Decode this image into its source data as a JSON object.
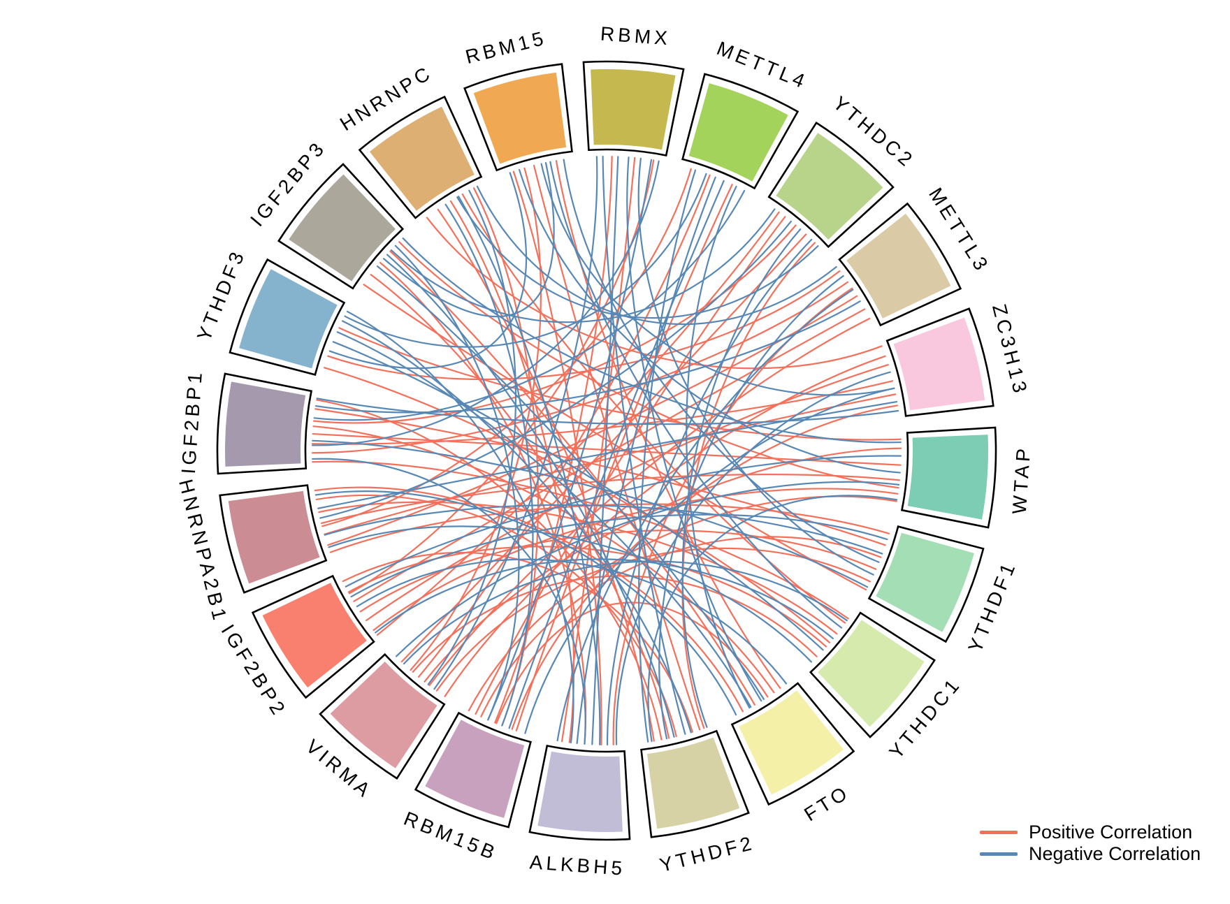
{
  "chart_data": {
    "type": "chord",
    "title": "",
    "description": "Circular chord diagram of pairwise correlations among m6A regulator genes",
    "sectors": [
      {
        "name": "RBM15",
        "color": "#F0A952"
      },
      {
        "name": "RBMX",
        "color": "#C4B84E"
      },
      {
        "name": "METTL4",
        "color": "#A4D35C"
      },
      {
        "name": "YTHDC2",
        "color": "#B8D38A"
      },
      {
        "name": "METTL3",
        "color": "#DACAA6"
      },
      {
        "name": "ZC3H13",
        "color": "#FAC8DE"
      },
      {
        "name": "WTAP",
        "color": "#7CCDB4"
      },
      {
        "name": "YTHDF1",
        "color": "#A4DEB5"
      },
      {
        "name": "YTHDC1",
        "color": "#D7EAAE"
      },
      {
        "name": "FTO",
        "color": "#F4F0A8"
      },
      {
        "name": "YTHDF2",
        "color": "#D6D2A6"
      },
      {
        "name": "ALKBH5",
        "color": "#C2BDD6"
      },
      {
        "name": "RBM15B",
        "color": "#C7A1BD"
      },
      {
        "name": "VIRMA",
        "color": "#DD9CA2"
      },
      {
        "name": "IGF2BP2",
        "color": "#F97F6E"
      },
      {
        "name": "HNRNPA2B1",
        "color": "#CC8C93"
      },
      {
        "name": "IGF2BP1",
        "color": "#A59AAD"
      },
      {
        "name": "YTHDF3",
        "color": "#85B2CC"
      },
      {
        "name": "IGF2BP3",
        "color": "#ABA89B"
      },
      {
        "name": "HNRNPC",
        "color": "#DDAF73"
      }
    ],
    "links_format": [
      "source_sector_index",
      "source_position_0to1",
      "target_sector_index",
      "target_position_0to1",
      "sign: p=positive n=negative"
    ],
    "links": [
      [
        16,
        0.2,
        4,
        0.3,
        "p"
      ],
      [
        16,
        0.32,
        5,
        0.52,
        "p"
      ],
      [
        16,
        0.45,
        6,
        0.42,
        "p"
      ],
      [
        16,
        0.62,
        3,
        0.5,
        "p"
      ],
      [
        16,
        0.78,
        7,
        0.28,
        "p"
      ],
      [
        16,
        0.08,
        8,
        0.15,
        "p"
      ],
      [
        16,
        0.9,
        10,
        0.72,
        "p"
      ],
      [
        15,
        0.18,
        4,
        0.52,
        "p"
      ],
      [
        15,
        0.33,
        5,
        0.7,
        "p"
      ],
      [
        15,
        0.48,
        6,
        0.62,
        "p"
      ],
      [
        15,
        0.63,
        8,
        0.4,
        "p"
      ],
      [
        15,
        0.8,
        10,
        0.52,
        "p"
      ],
      [
        15,
        0.08,
        7,
        0.12,
        "p"
      ],
      [
        15,
        0.92,
        9,
        0.8,
        "p"
      ],
      [
        14,
        0.12,
        6,
        0.8,
        "p"
      ],
      [
        14,
        0.28,
        5,
        0.3,
        "p"
      ],
      [
        14,
        0.42,
        7,
        0.62,
        "p"
      ],
      [
        14,
        0.58,
        4,
        0.72,
        "p"
      ],
      [
        14,
        0.72,
        8,
        0.62,
        "p"
      ],
      [
        14,
        0.88,
        10,
        0.3,
        "p"
      ],
      [
        14,
        0.04,
        3,
        0.22,
        "p"
      ],
      [
        13,
        0.18,
        7,
        0.8,
        "p"
      ],
      [
        13,
        0.38,
        6,
        0.2,
        "p"
      ],
      [
        13,
        0.58,
        8,
        0.8,
        "p"
      ],
      [
        13,
        0.78,
        3,
        0.68,
        "p"
      ],
      [
        13,
        0.05,
        5,
        0.18,
        "p"
      ],
      [
        12,
        0.28,
        5,
        0.85,
        "p"
      ],
      [
        12,
        0.5,
        9,
        0.42,
        "p"
      ],
      [
        12,
        0.72,
        7,
        0.45,
        "p"
      ],
      [
        12,
        0.9,
        6,
        0.9,
        "p"
      ],
      [
        17,
        0.28,
        4,
        0.12,
        "p"
      ],
      [
        17,
        0.68,
        6,
        0.08,
        "p"
      ],
      [
        17,
        0.12,
        8,
        0.55,
        "p"
      ],
      [
        18,
        0.28,
        10,
        0.62,
        "p"
      ],
      [
        18,
        0.48,
        11,
        0.52,
        "p"
      ],
      [
        18,
        0.68,
        9,
        0.62,
        "p"
      ],
      [
        18,
        0.12,
        7,
        0.92,
        "p"
      ],
      [
        18,
        0.85,
        6,
        0.72,
        "p"
      ],
      [
        19,
        0.3,
        10,
        0.82,
        "p"
      ],
      [
        19,
        0.5,
        11,
        0.72,
        "p"
      ],
      [
        19,
        0.68,
        8,
        0.22,
        "p"
      ],
      [
        19,
        0.85,
        12,
        0.42,
        "p"
      ],
      [
        19,
        0.12,
        5,
        0.04,
        "p"
      ],
      [
        0,
        0.2,
        11,
        0.3,
        "p"
      ],
      [
        0,
        0.48,
        10,
        0.2,
        "p"
      ],
      [
        0,
        0.78,
        9,
        0.22,
        "p"
      ],
      [
        0,
        0.35,
        13,
        0.62,
        "p"
      ],
      [
        1,
        0.3,
        12,
        0.52,
        "p"
      ],
      [
        1,
        0.6,
        11,
        0.82,
        "p"
      ],
      [
        1,
        0.85,
        14,
        0.7,
        "p"
      ],
      [
        2,
        0.4,
        13,
        0.48,
        "p"
      ],
      [
        2,
        0.72,
        12,
        0.22,
        "p"
      ],
      [
        2,
        0.14,
        15,
        0.44,
        "p"
      ],
      [
        3,
        0.32,
        12,
        0.8,
        "p"
      ],
      [
        4,
        0.86,
        13,
        0.3,
        "p"
      ],
      [
        11,
        0.14,
        4,
        0.4,
        "p"
      ],
      [
        10,
        0.14,
        3,
        0.84,
        "p"
      ],
      [
        9,
        0.32,
        16,
        0.55,
        "p"
      ],
      [
        1,
        0.18,
        10,
        0.4,
        "n"
      ],
      [
        1,
        0.38,
        11,
        0.42,
        "n"
      ],
      [
        1,
        0.52,
        9,
        0.52,
        "n"
      ],
      [
        1,
        0.68,
        7,
        0.7,
        "n"
      ],
      [
        1,
        0.82,
        12,
        0.62,
        "n"
      ],
      [
        1,
        0.1,
        13,
        0.22,
        "n"
      ],
      [
        1,
        0.92,
        16,
        0.3,
        "n"
      ],
      [
        2,
        0.2,
        10,
        0.9,
        "n"
      ],
      [
        2,
        0.48,
        11,
        0.62,
        "n"
      ],
      [
        2,
        0.78,
        9,
        0.7,
        "n"
      ],
      [
        2,
        0.9,
        16,
        0.66,
        "n"
      ],
      [
        2,
        0.6,
        12,
        0.32,
        "n"
      ],
      [
        2,
        0.35,
        17,
        0.85,
        "n"
      ],
      [
        0,
        0.28,
        6,
        0.52,
        "n"
      ],
      [
        0,
        0.58,
        5,
        0.62,
        "n"
      ],
      [
        0,
        0.7,
        8,
        0.3,
        "n"
      ],
      [
        0,
        0.88,
        7,
        0.52,
        "n"
      ],
      [
        0,
        0.15,
        17,
        0.35,
        "n"
      ],
      [
        0,
        0.64,
        18,
        0.55,
        "n"
      ],
      [
        3,
        0.58,
        10,
        0.1,
        "n"
      ],
      [
        3,
        0.78,
        11,
        0.22,
        "n"
      ],
      [
        3,
        0.42,
        15,
        0.55,
        "n"
      ],
      [
        3,
        0.15,
        18,
        0.7,
        "n"
      ],
      [
        3,
        0.9,
        19,
        0.6,
        "n"
      ],
      [
        4,
        0.2,
        10,
        0.65,
        "n"
      ],
      [
        4,
        0.42,
        11,
        0.88,
        "n"
      ],
      [
        4,
        0.6,
        16,
        0.82,
        "n"
      ],
      [
        4,
        0.05,
        19,
        0.9,
        "n"
      ],
      [
        5,
        0.4,
        11,
        0.1,
        "n"
      ],
      [
        5,
        0.62,
        12,
        0.1,
        "n"
      ],
      [
        5,
        0.8,
        15,
        0.68,
        "n"
      ],
      [
        5,
        0.92,
        16,
        0.92,
        "n"
      ],
      [
        6,
        0.3,
        14,
        0.8,
        "n"
      ],
      [
        6,
        0.68,
        13,
        0.88,
        "n"
      ],
      [
        6,
        0.12,
        18,
        0.92,
        "n"
      ],
      [
        6,
        0.88,
        10,
        0.85,
        "n"
      ],
      [
        7,
        0.2,
        14,
        0.65,
        "n"
      ],
      [
        7,
        0.4,
        15,
        0.32,
        "n"
      ],
      [
        7,
        0.88,
        16,
        0.36,
        "n"
      ],
      [
        8,
        0.18,
        13,
        0.74,
        "n"
      ],
      [
        8,
        0.48,
        14,
        0.08,
        "n"
      ],
      [
        8,
        0.68,
        17,
        0.48,
        "n"
      ],
      [
        8,
        0.9,
        15,
        0.15,
        "n"
      ],
      [
        9,
        0.48,
        18,
        0.42,
        "n"
      ],
      [
        9,
        0.68,
        17,
        0.62,
        "n"
      ],
      [
        9,
        0.9,
        15,
        0.86,
        "n"
      ],
      [
        9,
        0.12,
        14,
        0.5,
        "n"
      ],
      [
        10,
        0.32,
        17,
        0.78,
        "n"
      ],
      [
        10,
        0.55,
        18,
        0.62,
        "n"
      ],
      [
        11,
        0.32,
        19,
        0.62,
        "n"
      ],
      [
        11,
        0.52,
        16,
        0.12,
        "n"
      ],
      [
        11,
        0.7,
        17,
        0.92,
        "n"
      ],
      [
        12,
        0.42,
        19,
        0.42,
        "n"
      ],
      [
        12,
        0.62,
        18,
        0.78,
        "n"
      ],
      [
        13,
        0.32,
        19,
        0.78,
        "n"
      ]
    ],
    "link_colors": {
      "positive": "#F4705B",
      "negative": "#5788B5"
    },
    "legend": {
      "position": "bottom-right",
      "items": [
        {
          "label": "Positive Correlation",
          "color": "#F4705B"
        },
        {
          "label": "Negative Correlation",
          "color": "#5788B5"
        }
      ]
    },
    "layout_hints": {
      "sector_label_color": "#000000",
      "sector_border_color": "#000000",
      "background": "#ffffff"
    }
  }
}
